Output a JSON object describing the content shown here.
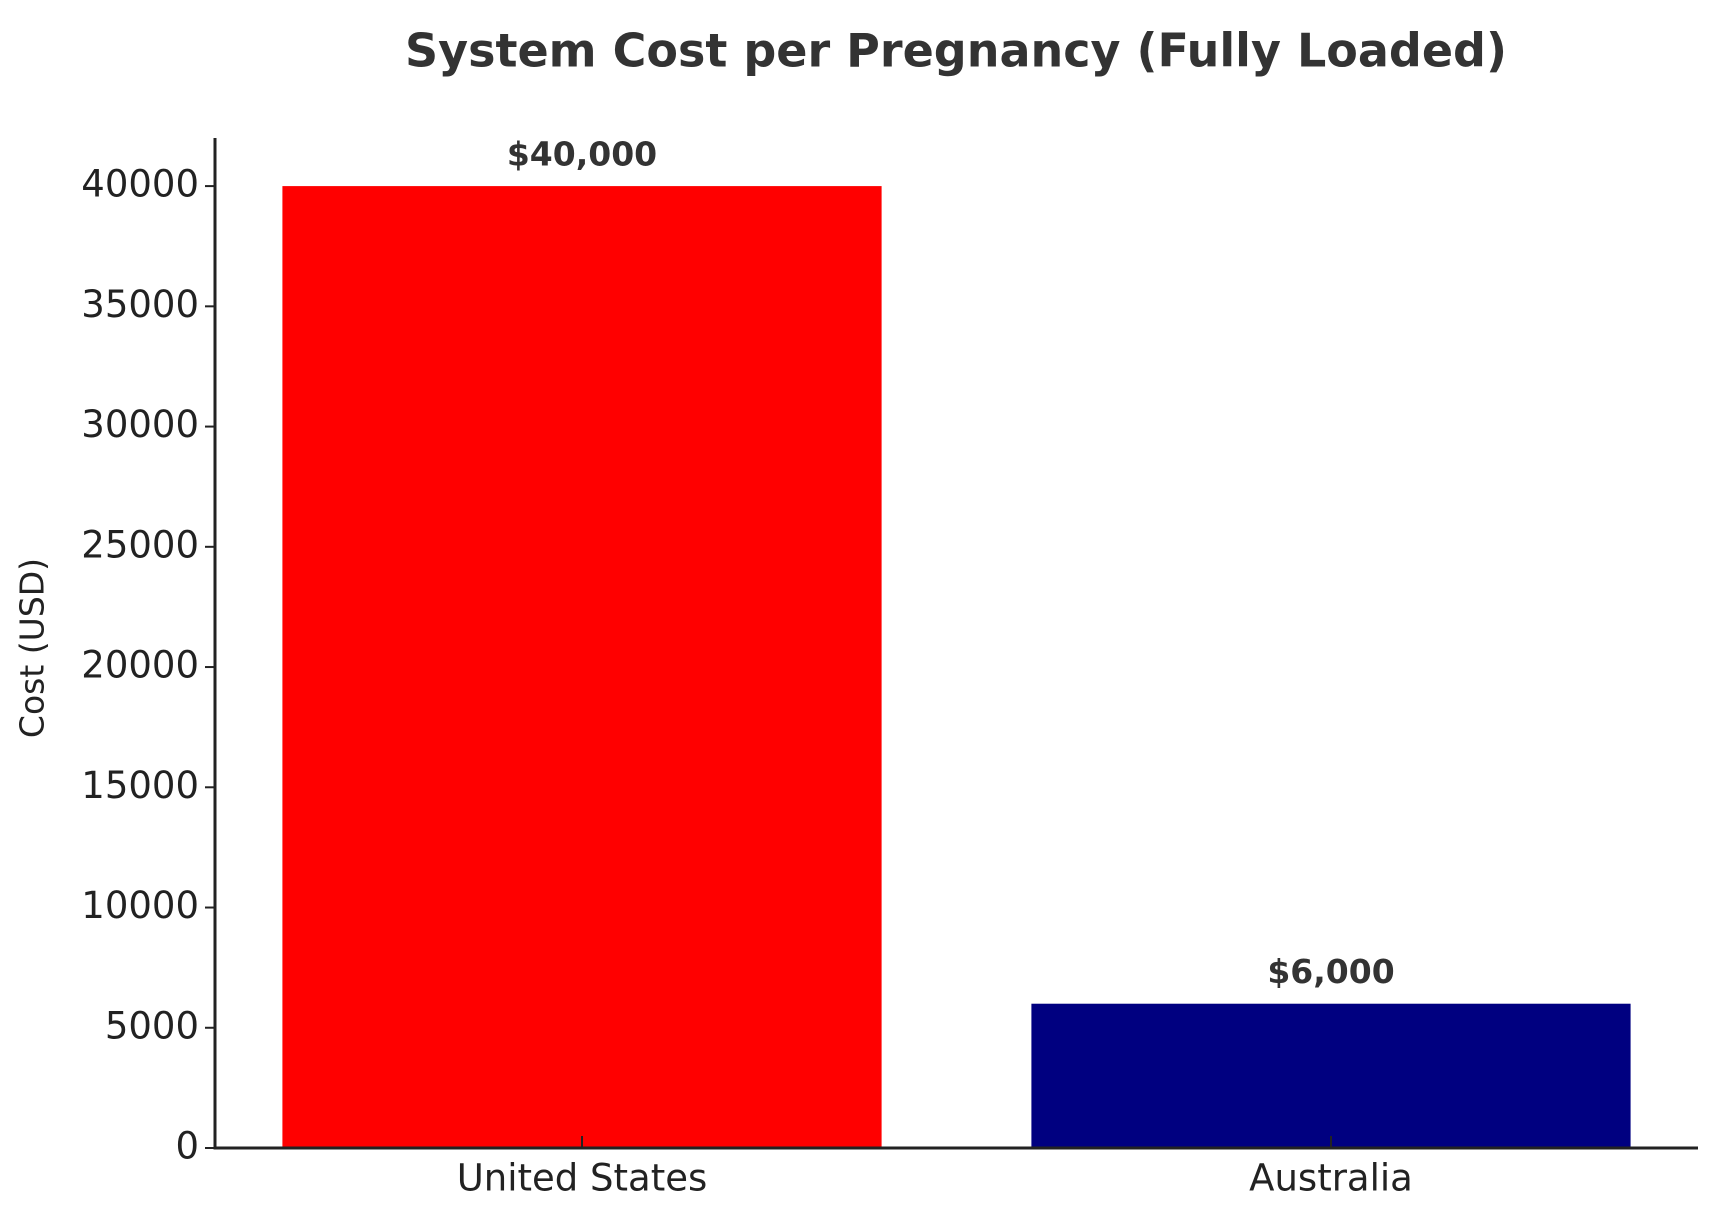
{
  "chart_data": {
    "type": "bar",
    "title": "System Cost per Pregnancy (Fully Loaded)",
    "y_label": "Cost (USD)",
    "categories": [
      "United States",
      "Australia"
    ],
    "values": [
      40000,
      6000
    ],
    "value_labels": [
      "$40,000",
      "$6,000"
    ],
    "colors": [
      "#ff0000",
      "#000080"
    ],
    "ylim": [
      0,
      42000
    ],
    "yticks": [
      0,
      5000,
      10000,
      15000,
      20000,
      25000,
      30000,
      35000,
      40000
    ],
    "grid": false
  }
}
